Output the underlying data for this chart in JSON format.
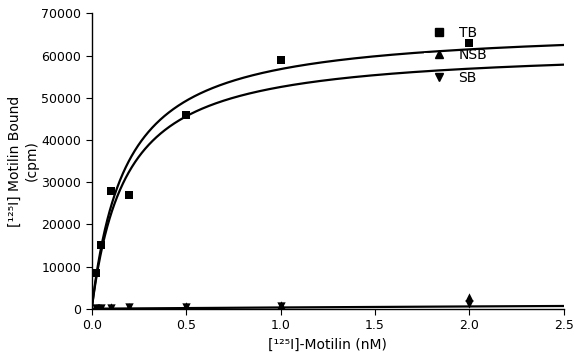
{
  "TB_x": [
    0.025,
    0.05,
    0.1,
    0.2,
    0.5,
    1.0,
    2.0
  ],
  "TB_y": [
    8500,
    15000,
    28000,
    27000,
    46000,
    59000,
    63000
  ],
  "NSB_x": [
    0.025,
    0.05,
    0.1,
    0.2,
    0.5,
    1.0,
    2.0
  ],
  "NSB_y": [
    100,
    200,
    300,
    400,
    600,
    800,
    2800
  ],
  "SB_x": [
    0.025,
    0.05,
    0.1,
    0.2,
    0.5,
    1.0,
    2.0
  ],
  "SB_y": [
    100,
    200,
    200,
    300,
    400,
    600,
    1200
  ],
  "TB_Bmax": 67000,
  "TB_Kd": 0.18,
  "SB_Bmax": 62000,
  "SB_Kd": 0.18,
  "NSB_Bmax": 3200,
  "NSB_Kd": 10.0,
  "xlim": [
    0,
    2.5
  ],
  "ylim": [
    0,
    70000
  ],
  "xlabel": "[¹²⁵I]-Motilin (nM)",
  "ylabel": "[¹²⁵I] Motilin Bound\n(cpm)",
  "xticks": [
    0.0,
    0.5,
    1.0,
    1.5,
    2.0,
    2.5
  ],
  "yticks": [
    0,
    10000,
    20000,
    30000,
    40000,
    50000,
    60000,
    70000
  ],
  "ytick_labels": [
    "0",
    "10000",
    "20000",
    "30000",
    "40000",
    "50000",
    "60000",
    "70000"
  ],
  "legend_labels": [
    "TB",
    "NSB",
    "SB"
  ],
  "color": "#000000",
  "background": "#ffffff",
  "marker_TB": "s",
  "marker_NSB": "^",
  "marker_SB": "v",
  "markersize": 6,
  "linewidth": 1.6,
  "fontsize_label": 10,
  "fontsize_tick": 9,
  "fontsize_legend": 10
}
